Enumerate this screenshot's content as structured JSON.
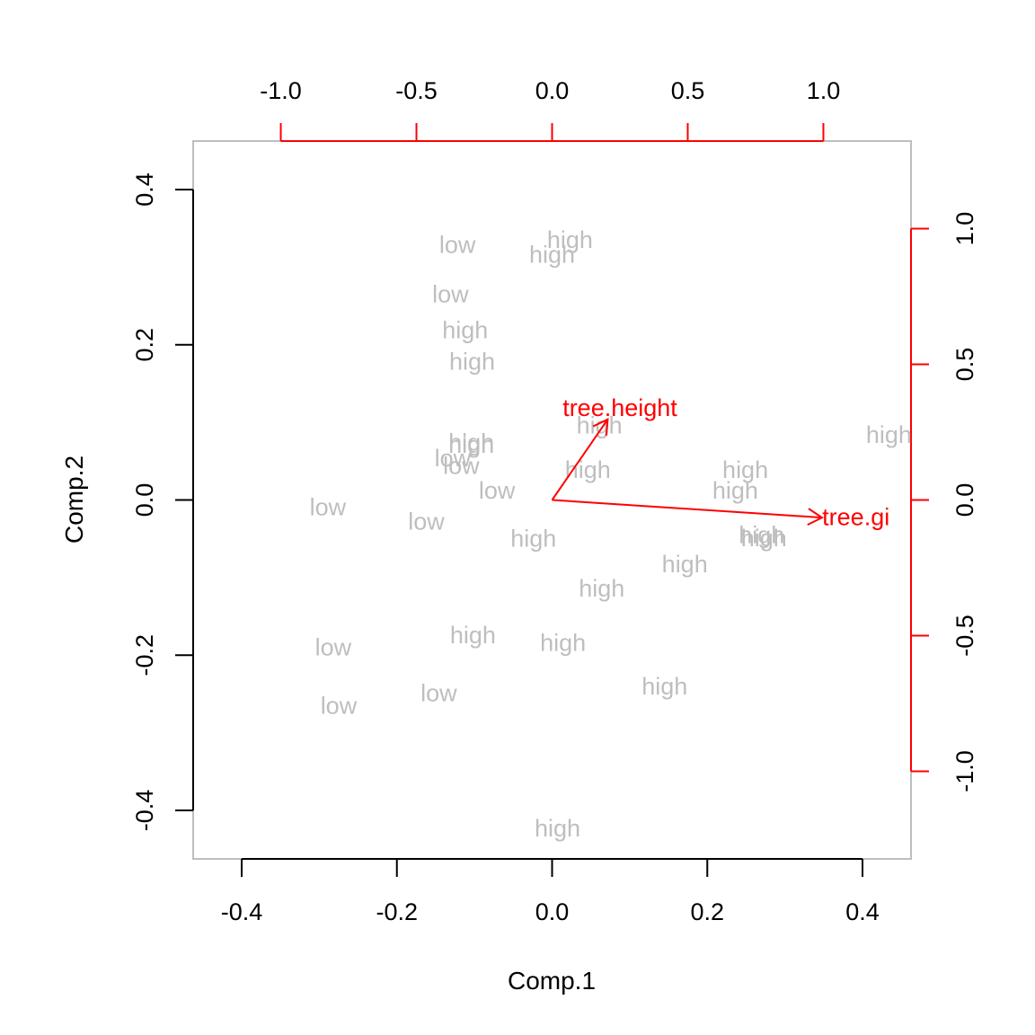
{
  "chart_data": {
    "type": "scatter",
    "subtype": "biplot",
    "xlabel": "Comp.1",
    "ylabel": "Comp.2",
    "xlim": [
      -0.4625,
      0.4625
    ],
    "ylim": [
      -0.4625,
      0.4625
    ],
    "x_ticks": [
      -0.4,
      -0.2,
      0.0,
      0.2,
      0.4
    ],
    "x_tick_labels": [
      "-0.4",
      "-0.2",
      "0.0",
      "0.2",
      "0.4"
    ],
    "y_ticks": [
      -0.4,
      -0.2,
      0.0,
      0.2,
      0.4
    ],
    "y_tick_labels": [
      "-0.4",
      "-0.2",
      "0.0",
      "0.2",
      "0.4"
    ],
    "secondary_axis_lim": [
      -1.323,
      1.323
    ],
    "secondary_ticks": [
      -1.0,
      -0.5,
      0.0,
      0.5,
      1.0
    ],
    "secondary_tick_labels": [
      "-1.0",
      "-0.5",
      "0.0",
      "0.5",
      "1.0"
    ],
    "points": [
      {
        "x": -0.122,
        "y": 0.329,
        "label": "low"
      },
      {
        "x": 0.023,
        "y": 0.335,
        "label": "high"
      },
      {
        "x": 0.0,
        "y": 0.316,
        "label": "high"
      },
      {
        "x": -0.131,
        "y": 0.265,
        "label": "low"
      },
      {
        "x": -0.112,
        "y": 0.219,
        "label": "high"
      },
      {
        "x": -0.103,
        "y": 0.178,
        "label": "high"
      },
      {
        "x": 0.061,
        "y": 0.096,
        "label": "high"
      },
      {
        "x": -0.104,
        "y": 0.074,
        "label": "high"
      },
      {
        "x": -0.104,
        "y": 0.071,
        "label": "high"
      },
      {
        "x": -0.128,
        "y": 0.054,
        "label": "low"
      },
      {
        "x": -0.117,
        "y": 0.044,
        "label": "low"
      },
      {
        "x": -0.071,
        "y": 0.012,
        "label": "low"
      },
      {
        "x": 0.046,
        "y": 0.039,
        "label": "high"
      },
      {
        "x": 0.249,
        "y": 0.039,
        "label": "high"
      },
      {
        "x": 0.236,
        "y": 0.012,
        "label": "high"
      },
      {
        "x": 0.434,
        "y": 0.084,
        "label": "high"
      },
      {
        "x": -0.289,
        "y": -0.009,
        "label": "low"
      },
      {
        "x": -0.162,
        "y": -0.028,
        "label": "low"
      },
      {
        "x": -0.024,
        "y": -0.05,
        "label": "high"
      },
      {
        "x": 0.27,
        "y": -0.045,
        "label": "high"
      },
      {
        "x": 0.273,
        "y": -0.049,
        "label": "high"
      },
      {
        "x": 0.171,
        "y": -0.083,
        "label": "high"
      },
      {
        "x": 0.064,
        "y": -0.114,
        "label": "high"
      },
      {
        "x": -0.102,
        "y": -0.174,
        "label": "high"
      },
      {
        "x": 0.014,
        "y": -0.184,
        "label": "high"
      },
      {
        "x": -0.282,
        "y": -0.19,
        "label": "low"
      },
      {
        "x": -0.146,
        "y": -0.249,
        "label": "low"
      },
      {
        "x": 0.145,
        "y": -0.24,
        "label": "high"
      },
      {
        "x": -0.275,
        "y": -0.265,
        "label": "low"
      },
      {
        "x": 0.007,
        "y": -0.423,
        "label": "high"
      }
    ],
    "loadings": [
      {
        "name": "tree.height",
        "x": 0.205,
        "y": 0.297,
        "label_x": 0.25,
        "label_y": 0.34
      },
      {
        "name": "tree.gi",
        "x": 0.995,
        "y": -0.065,
        "label_x": 1.12,
        "label_y": -0.063
      }
    ],
    "colors": {
      "points": "#bebebe",
      "loadings": "#ff0000",
      "axes": "#000000",
      "frame": "#bebebe"
    }
  }
}
